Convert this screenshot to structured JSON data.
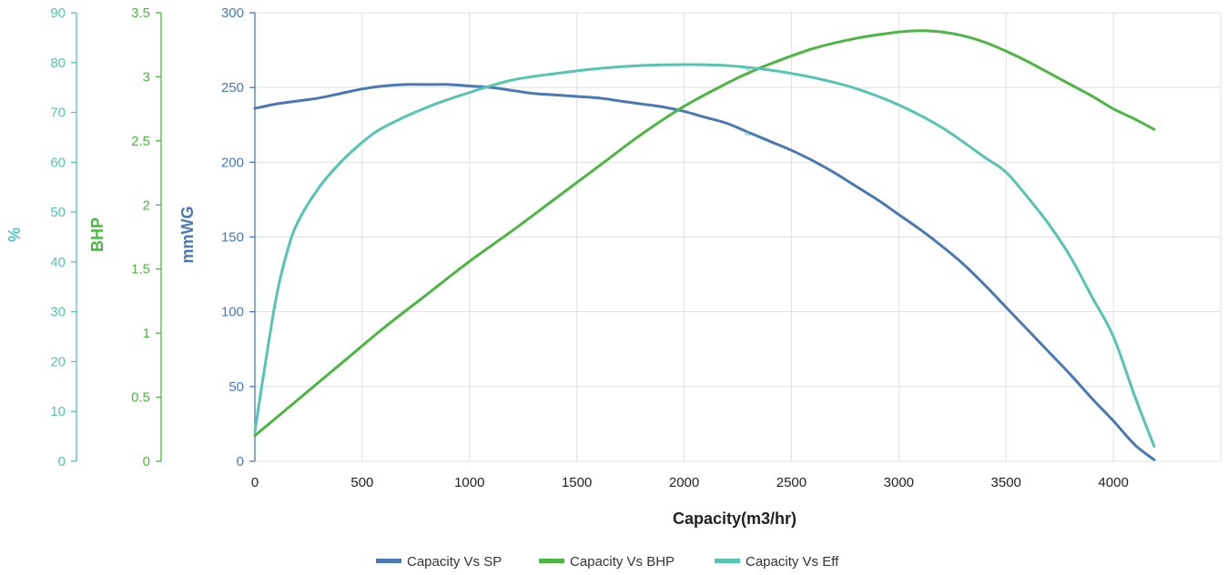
{
  "chart_data": {
    "type": "line",
    "title": "",
    "xlabel": "Capacity(m3/hr)",
    "xlim": [
      0,
      4500
    ],
    "x_ticks": [
      "0",
      "500",
      "1000",
      "1500",
      "2000",
      "2500",
      "3000",
      "3500",
      "4000"
    ],
    "grid": true,
    "legend_position": "bottom",
    "colors": {
      "sp": "#4a78b5",
      "bhp": "#4cb543",
      "eff": "#55c4b0"
    },
    "y_axes": [
      {
        "id": "sp",
        "label": "mmWG",
        "range": [
          0,
          300
        ],
        "ticks": [
          "0",
          "50",
          "100",
          "150",
          "200",
          "250",
          "300"
        ],
        "color": "#4a78b5"
      },
      {
        "id": "bhp",
        "label": "BHP",
        "range": [
          0,
          3.5
        ],
        "ticks": [
          "0",
          "0.5",
          "1",
          "1.5",
          "2",
          "2.5",
          "3",
          "3.5"
        ],
        "color": "#4cb543"
      },
      {
        "id": "eff",
        "label": "%",
        "range": [
          0,
          90
        ],
        "ticks": [
          "0",
          "10",
          "20",
          "30",
          "40",
          "50",
          "60",
          "70",
          "80",
          "90"
        ],
        "color": "#55c4b0"
      }
    ],
    "series": [
      {
        "name": "Capacity Vs SP",
        "axis": "sp",
        "color": "#4a78b5",
        "x": [
          0,
          100,
          200,
          300,
          400,
          500,
          600,
          700,
          800,
          900,
          1000,
          1100,
          1200,
          1300,
          1400,
          1500,
          1600,
          1700,
          1800,
          1900,
          2000,
          2100,
          2200,
          2300,
          2400,
          2500,
          2600,
          2700,
          2800,
          2900,
          3000,
          3100,
          3200,
          3300,
          3400,
          3500,
          3600,
          3700,
          3800,
          3900,
          4000,
          4100,
          4190
        ],
        "values": [
          236,
          239,
          241,
          243,
          246,
          249,
          251,
          252,
          252,
          252,
          251,
          250,
          248,
          246,
          245,
          244,
          243,
          241,
          239,
          237,
          234,
          230,
          226,
          220,
          214,
          208,
          201,
          193,
          184,
          175,
          165,
          155,
          144,
          132,
          118,
          103,
          88,
          73,
          58,
          42,
          27,
          11,
          1
        ]
      },
      {
        "name": "Capacity Vs BHP",
        "axis": "bhp",
        "color": "#4cb543",
        "x": [
          0,
          200,
          400,
          600,
          800,
          1000,
          1200,
          1400,
          1600,
          1800,
          2000,
          2200,
          2300,
          2400,
          2600,
          2800,
          3000,
          3100,
          3200,
          3300,
          3400,
          3500,
          3600,
          3700,
          3800,
          3900,
          4000,
          4100,
          4190
        ],
        "values": [
          0.2,
          0.48,
          0.76,
          1.04,
          1.3,
          1.56,
          1.8,
          2.05,
          2.3,
          2.55,
          2.77,
          2.95,
          3.03,
          3.1,
          3.22,
          3.3,
          3.35,
          3.36,
          3.35,
          3.32,
          3.27,
          3.2,
          3.12,
          3.03,
          2.94,
          2.85,
          2.75,
          2.67,
          2.59
        ]
      },
      {
        "name": "Capacity Vs Eff",
        "axis": "eff",
        "color": "#55c4b0",
        "x": [
          0,
          50,
          100,
          150,
          200,
          300,
          400,
          500,
          600,
          800,
          1000,
          1200,
          1400,
          1600,
          1800,
          2000,
          2200,
          2400,
          2600,
          2800,
          3000,
          3200,
          3400,
          3500,
          3600,
          3700,
          3800,
          3900,
          4000,
          4100,
          4190
        ],
        "values": [
          6,
          20,
          33,
          42,
          48,
          55,
          60,
          64,
          67,
          71,
          74,
          76.5,
          77.8,
          78.8,
          79.4,
          79.6,
          79.4,
          78.5,
          77,
          74.8,
          71.5,
          67,
          61,
          58,
          53,
          47.5,
          41,
          33,
          25,
          13,
          3
        ]
      }
    ],
    "annotations": [
      "«",
      "«"
    ]
  }
}
